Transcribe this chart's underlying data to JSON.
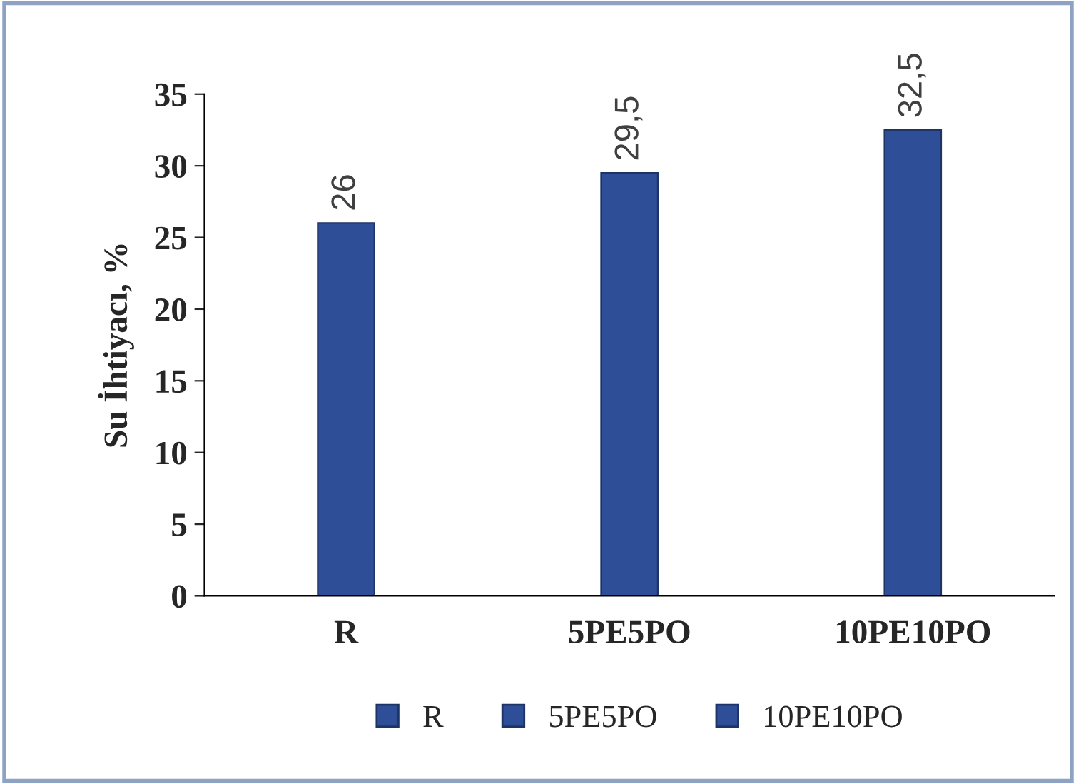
{
  "chart_data": {
    "type": "bar",
    "ylabel": "Su İhtiyacı, %",
    "categories": [
      "R",
      "5PE5PO",
      "10PE10PO"
    ],
    "series": [
      {
        "name": "R",
        "color": "#2e4f98",
        "values": [
          26,
          null,
          null
        ],
        "value_labels": [
          "26",
          null,
          null
        ]
      },
      {
        "name": "5PE5PO",
        "color": "#2e4f98",
        "values": [
          null,
          29.5,
          null
        ],
        "value_labels": [
          null,
          "29,5",
          null
        ]
      },
      {
        "name": "10PE10PO",
        "color": "#2e4f98",
        "values": [
          null,
          null,
          32.5
        ],
        "value_labels": [
          null,
          null,
          "32,5"
        ]
      }
    ],
    "ylim": [
      0,
      35
    ],
    "yticks": [
      0,
      5,
      10,
      15,
      20,
      25,
      30,
      35
    ],
    "grid": false,
    "legend": "bottom"
  }
}
